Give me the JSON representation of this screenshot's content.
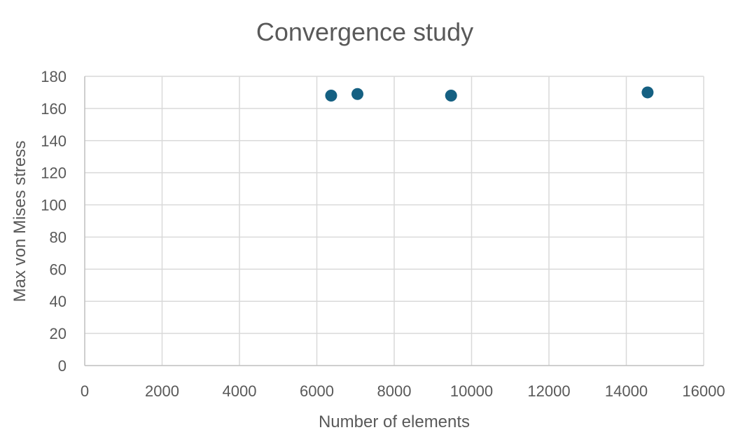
{
  "chart_data": {
    "type": "scatter",
    "title": "Convergence study",
    "xlabel": "Number of elements",
    "ylabel": "Max von Mises stress",
    "xlim": [
      0,
      16000
    ],
    "ylim": [
      0,
      180
    ],
    "x_ticks": [
      "0",
      "2000",
      "4000",
      "6000",
      "8000",
      "10000",
      "12000",
      "14000",
      "16000"
    ],
    "y_ticks": [
      "0",
      "20",
      "40",
      "60",
      "80",
      "100",
      "120",
      "140",
      "160",
      "180"
    ],
    "x_tick_values": [
      0,
      2000,
      4000,
      6000,
      8000,
      10000,
      12000,
      14000,
      16000
    ],
    "y_tick_values": [
      0,
      20,
      40,
      60,
      80,
      100,
      120,
      140,
      160,
      180
    ],
    "grid": true,
    "legend": "none",
    "series": [
      {
        "color": "#156082",
        "points": [
          {
            "x": 6370,
            "y": 168
          },
          {
            "x": 7050,
            "y": 169
          },
          {
            "x": 9470,
            "y": 168
          },
          {
            "x": 14550,
            "y": 170
          }
        ]
      }
    ]
  }
}
